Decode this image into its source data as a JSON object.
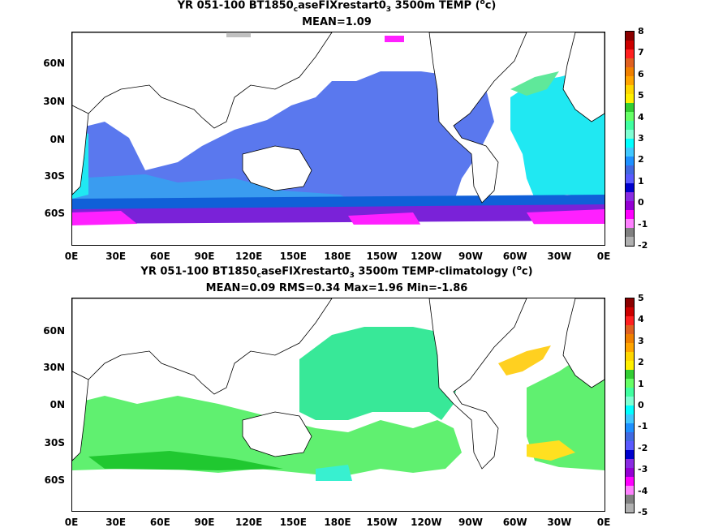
{
  "panels": [
    {
      "title_parts": {
        "pre": "YR 051-100 BT1850",
        "sub": "c",
        "mid": "aseFIXrestart0",
        "sub2": "3",
        "post": " 3500m TEMP (",
        "sup": "o",
        "end": "c)"
      },
      "stats": "MEAN=1.09",
      "lat_labels": [
        "60N",
        "30N",
        "0N",
        "30S",
        "60S"
      ],
      "lon_labels": [
        "0E",
        "30E",
        "60E",
        "90E",
        "120E",
        "150E",
        "180E",
        "150W",
        "120W",
        "90W",
        "60W",
        "30W",
        "0E"
      ],
      "colorbar_labels": [
        "8",
        "7",
        "6",
        "5",
        "4",
        "3",
        "2",
        "1",
        "0",
        "-1",
        "-2"
      ],
      "colorbar_colors": [
        "#8b0000",
        "#cc0000",
        "#ff2020",
        "#e06020",
        "#f08000",
        "#ffa500",
        "#ffd700",
        "#fff000",
        "#32cd32",
        "#66ff66",
        "#40ffa0",
        "#7fffd4",
        "#00ffff",
        "#40c8ff",
        "#1e90ff",
        "#4169e1",
        "#5a5aff",
        "#0000cd",
        "#8a2be2",
        "#9400d3",
        "#ff00ff",
        "#ff80ff",
        "#808080",
        "#b0b0b0"
      ]
    },
    {
      "title_parts": {
        "pre": "YR 051-100 BT1850",
        "sub": "c",
        "mid": "aseFIXrestart0",
        "sub2": "3",
        "post": " 3500m TEMP-climatology (",
        "sup": "o",
        "end": "c)"
      },
      "stats": "MEAN=0.09   RMS=0.34   Max=1.96   Min=-1.86",
      "lat_labels": [
        "60N",
        "30N",
        "0N",
        "30S",
        "60S"
      ],
      "lon_labels": [
        "0E",
        "30E",
        "60E",
        "90E",
        "120E",
        "150E",
        "180E",
        "150W",
        "120W",
        "90W",
        "60W",
        "30W",
        "0E"
      ],
      "colorbar_labels": [
        "5",
        "4",
        "3",
        "2",
        "1",
        "0",
        "-1",
        "-2",
        "-3",
        "-4",
        "-5"
      ],
      "colorbar_colors": [
        "#8b0000",
        "#cc0000",
        "#ff2020",
        "#e06020",
        "#f08000",
        "#ffa500",
        "#ffd700",
        "#fff000",
        "#32cd32",
        "#66ff66",
        "#40ffa0",
        "#7fffd4",
        "#00ffff",
        "#40c8ff",
        "#1e90ff",
        "#4169e1",
        "#5a5aff",
        "#0000cd",
        "#8a2be2",
        "#9400d3",
        "#ff00ff",
        "#ff80ff",
        "#808080",
        "#b0b0b0"
      ]
    }
  ]
}
